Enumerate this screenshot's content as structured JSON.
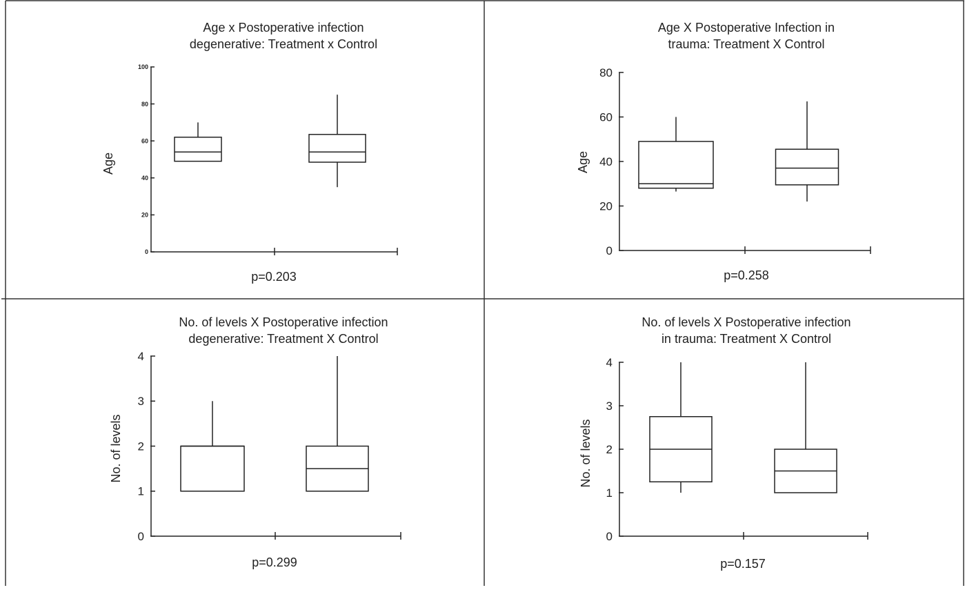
{
  "colors": {
    "frame": "#333333",
    "axis": "#222222",
    "box": "#222222",
    "text": "#222222"
  },
  "chart_data": [
    {
      "type": "box",
      "title_lines": [
        "Age x Postoperative infection",
        "degenerative: Treatment x Control"
      ],
      "ylabel": "Age",
      "ylim": [
        0,
        100
      ],
      "yticks": [
        0,
        20,
        40,
        60,
        80,
        100
      ],
      "tick_style": "small",
      "caption": "p=0.203",
      "boxes": [
        {
          "min": 49,
          "q1": 49,
          "median": 54,
          "q3": 62,
          "max": 70
        },
        {
          "min": 35,
          "q1": 48.5,
          "median": 54,
          "q3": 63.5,
          "max": 85
        }
      ]
    },
    {
      "type": "box",
      "title_lines": [
        "Age X Postoperative Infection in",
        "trauma: Treatment X Control"
      ],
      "ylabel": "Age",
      "ylim": [
        0,
        80
      ],
      "yticks": [
        0,
        20,
        40,
        60,
        80
      ],
      "tick_style": "normal",
      "caption": "p=0.258",
      "boxes": [
        {
          "min": 26.5,
          "q1": 28,
          "median": 30,
          "q3": 49,
          "max": 60
        },
        {
          "min": 22,
          "q1": 29.5,
          "median": 37,
          "q3": 45.5,
          "max": 67
        }
      ]
    },
    {
      "type": "box",
      "title_lines": [
        "No. of levels X Postoperative infection",
        "degenerative: Treatment X Control"
      ],
      "ylabel": "No. of levels",
      "ylim": [
        0,
        4
      ],
      "yticks": [
        0,
        1,
        2,
        3,
        4
      ],
      "tick_style": "normal",
      "caption": "p=0.299",
      "boxes": [
        {
          "min": 1,
          "q1": 1,
          "median": 2,
          "q3": 2,
          "max": 3
        },
        {
          "min": 1,
          "q1": 1,
          "median": 1.5,
          "q3": 2,
          "max": 4
        }
      ]
    },
    {
      "type": "box",
      "title_lines": [
        "No. of levels X Postoperative infection",
        "in trauma: Treatment X Control"
      ],
      "ylabel": "No. of levels",
      "ylim": [
        0,
        4
      ],
      "yticks": [
        0,
        1,
        2,
        3,
        4
      ],
      "tick_style": "normal",
      "caption": "p=0.157",
      "boxes": [
        {
          "min": 1,
          "q1": 1.25,
          "median": 2,
          "q3": 2.75,
          "max": 4
        },
        {
          "min": 1,
          "q1": 1,
          "median": 1.5,
          "q3": 2,
          "max": 4
        }
      ]
    }
  ]
}
